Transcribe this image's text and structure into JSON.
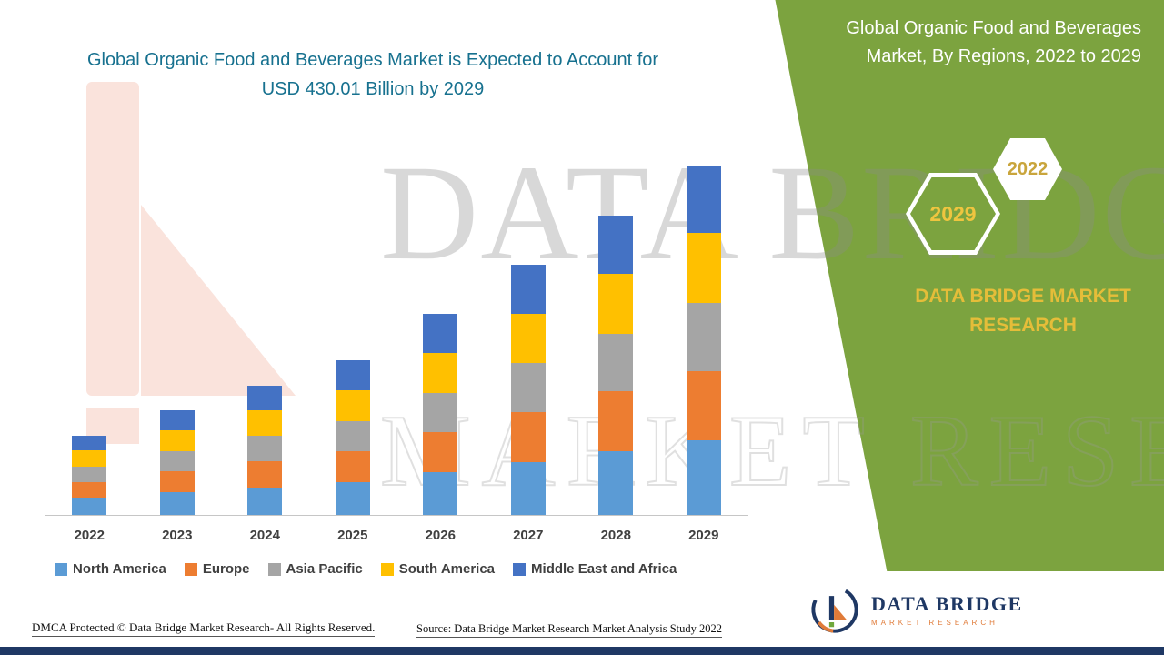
{
  "title": {
    "text": "Global Organic Food and Beverages Market is Expected to Account for USD 430.01 Billion by 2029"
  },
  "side_panel": {
    "title": "Global Organic Food and Beverages Market, By Regions, 2022 to 2029",
    "hexagon_2029": "2029",
    "hexagon_2022": "2022",
    "brand_text": "DATA BRIDGE MARKET RESEARCH",
    "panel_color": "#7CA33F",
    "accent_yellow": "#E5BD39"
  },
  "watermark": {
    "line1": "DATA BRIDGE",
    "line2": "MARKET RESEARCH"
  },
  "chart_data": {
    "type": "bar",
    "stacked": true,
    "title": "Global Organic Food and Beverages Market is Expected to Account for USD 430.01 Billion by 2029",
    "xlabel": "",
    "ylabel": "",
    "unit": "USD Billion",
    "ylim": [
      0,
      430.01
    ],
    "grid": false,
    "legend_position": "bottom",
    "categories": [
      "2022",
      "2023",
      "2024",
      "2025",
      "2026",
      "2027",
      "2028",
      "2029"
    ],
    "series": [
      {
        "name": "North America",
        "color": "#5B9BD5",
        "values": [
          21.0,
          27.5,
          34.0,
          40.5,
          52.5,
          65.5,
          78.5,
          91.5
        ]
      },
      {
        "name": "Europe",
        "color": "#ED7D31",
        "values": [
          19.5,
          25.8,
          32.0,
          38.0,
          49.5,
          61.5,
          73.5,
          86.0
        ]
      },
      {
        "name": "Asia Pacific",
        "color": "#A5A5A5",
        "values": [
          19.0,
          25.0,
          31.0,
          37.0,
          48.0,
          60.0,
          71.5,
          84.0
        ]
      },
      {
        "name": "South America",
        "color": "#FFC000",
        "values": [
          19.5,
          25.5,
          31.5,
          37.5,
          49.0,
          61.0,
          73.0,
          85.5
        ]
      },
      {
        "name": "Middle East and Africa",
        "color": "#4472C4",
        "values": [
          18.5,
          24.5,
          31.0,
          37.0,
          48.5,
          60.0,
          72.0,
          83.01
        ]
      }
    ],
    "totals": [
      97.5,
      128.3,
      159.5,
      190.0,
      247.5,
      308.0,
      368.5,
      430.01
    ]
  },
  "footer": {
    "dmca": "DMCA Protected © Data Bridge Market Research- All Rights Reserved.",
    "source": "Source: Data Bridge Market Research Market Analysis Study 2022"
  },
  "logo": {
    "name": "DATA BRIDGE",
    "subtitle": "MARKET RESEARCH"
  }
}
